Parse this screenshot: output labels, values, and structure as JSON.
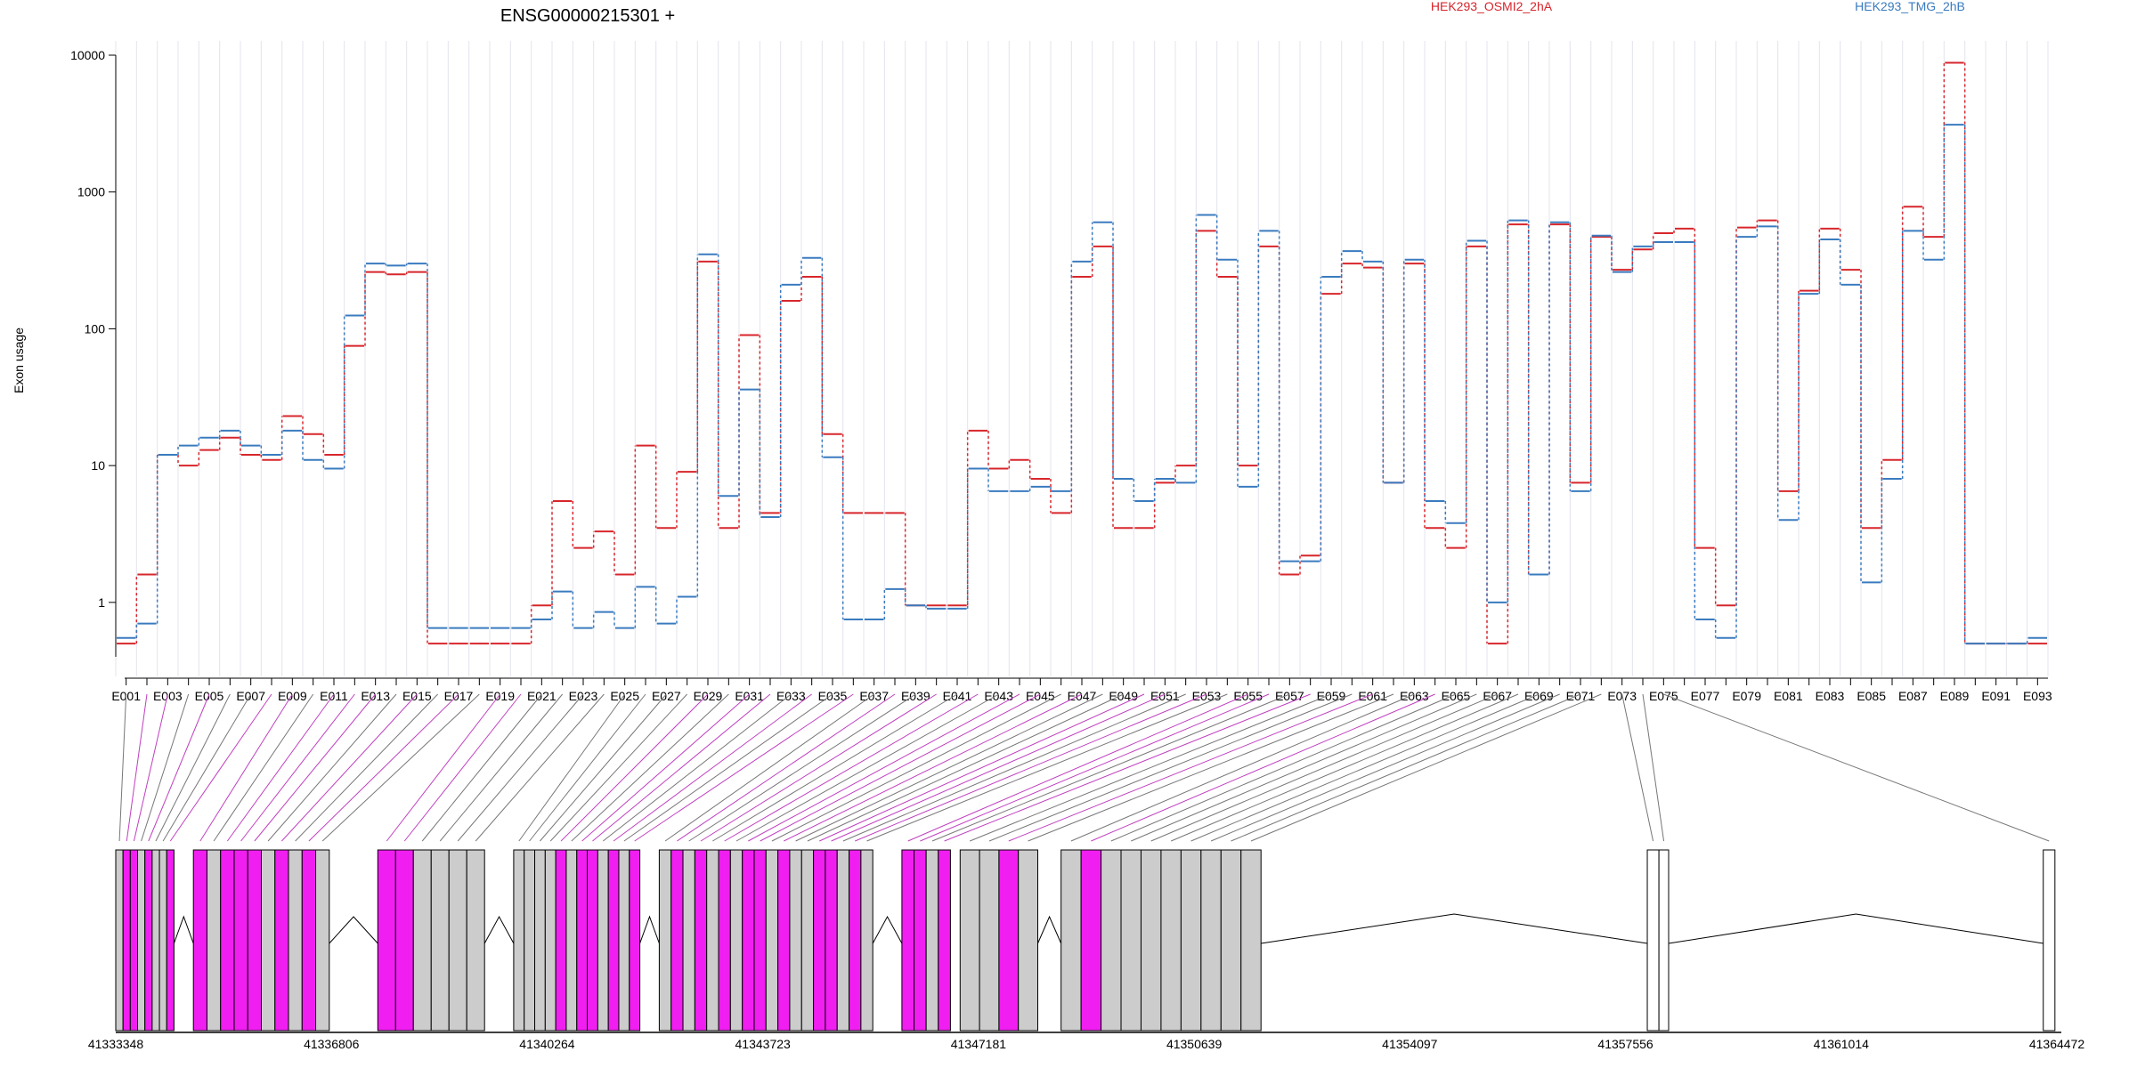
{
  "title": "ENSG00000215301 +",
  "ylabel": "Exon usage",
  "legend": [
    {
      "name": "HEK293_OSMI2_2hA",
      "color": "#d7262c"
    },
    {
      "name": "HEK293_TMG_2hB",
      "color": "#3a7bbf"
    }
  ],
  "colors": {
    "exon_highlight": "#f01ef0",
    "exon_plain": "#cccccc",
    "connector_highlight": "#c040c0",
    "connector_plain": "#777777"
  },
  "chart_data": {
    "type": "line",
    "scale": "log",
    "ylim": [
      0.4,
      10000
    ],
    "yticks": [
      1,
      10,
      100,
      1000,
      10000
    ],
    "ytick_labels": [
      "1",
      "10",
      "100",
      "1000",
      "10000"
    ],
    "categories": [
      "E001",
      "E002",
      "E003",
      "E004",
      "E005",
      "E006",
      "E007",
      "E008",
      "E009",
      "E010",
      "E011",
      "E012",
      "E013",
      "E014",
      "E015",
      "E016",
      "E017",
      "E018",
      "E019",
      "E020",
      "E021",
      "E022",
      "E023",
      "E024",
      "E025",
      "E026",
      "E027",
      "E028",
      "E029",
      "E030",
      "E031",
      "E032",
      "E033",
      "E034",
      "E035",
      "E036",
      "E037",
      "E038",
      "E039",
      "E040",
      "E041",
      "E042",
      "E043",
      "E044",
      "E045",
      "E046",
      "E047",
      "E048",
      "E049",
      "E050",
      "E051",
      "E052",
      "E053",
      "E054",
      "E055",
      "E056",
      "E057",
      "E058",
      "E059",
      "E060",
      "E061",
      "E062",
      "E063",
      "E064",
      "E065",
      "E066",
      "E067",
      "E068",
      "E069",
      "E070",
      "E071",
      "E072",
      "E073",
      "E074",
      "E075",
      "E076",
      "E077",
      "E078",
      "E079",
      "E080",
      "E081",
      "E082",
      "E083",
      "E084",
      "E085",
      "E086",
      "E087",
      "E088",
      "E089",
      "E090",
      "E091",
      "E092",
      "E093"
    ],
    "xtick_labels": [
      "E001",
      "E003",
      "E005",
      "E007",
      "E009",
      "E011",
      "E013",
      "E015",
      "E017",
      "E019",
      "E021",
      "E023",
      "E025",
      "E027",
      "E029",
      "E031",
      "E033",
      "E035",
      "E037",
      "E039",
      "E041",
      "E043",
      "E045",
      "E047",
      "E049",
      "E051",
      "E053",
      "E055",
      "E057",
      "E059",
      "E061",
      "E063",
      "E065",
      "E067",
      "E069",
      "E071",
      "E073",
      "E075",
      "E077",
      "E079",
      "E081",
      "E083",
      "E085",
      "E087",
      "E089",
      "E091",
      "E093"
    ],
    "series": [
      {
        "name": "HEK293_OSMI2_2hA",
        "values": [
          0.5,
          1.6,
          12,
          10,
          13,
          16,
          12,
          11,
          23,
          17,
          12,
          75,
          260,
          250,
          260,
          0.5,
          0.5,
          0.5,
          0.5,
          0.5,
          0.95,
          5.5,
          2.5,
          3.3,
          1.6,
          14,
          3.5,
          9,
          310,
          3.5,
          90,
          4.5,
          160,
          240,
          17,
          4.5,
          4.5,
          4.5,
          0.95,
          0.95,
          0.95,
          18,
          9.5,
          11,
          8,
          4.5,
          240,
          400,
          3.5,
          3.5,
          7.5,
          10,
          520,
          240,
          10,
          400,
          1.6,
          2.2,
          180,
          300,
          280,
          7.5,
          300,
          3.5,
          2.5,
          400,
          0.5,
          580,
          1.6,
          580,
          7.5,
          470,
          270,
          380,
          500,
          540,
          2.5,
          0.95,
          550,
          620,
          6.5,
          190,
          540,
          270,
          3.5,
          11,
          780,
          470,
          8800,
          0.5,
          0.5,
          0.5,
          0.5
        ]
      },
      {
        "name": "HEK293_TMG_2hB",
        "values": [
          0.55,
          0.7,
          12,
          14,
          16,
          18,
          14,
          12,
          18,
          11,
          9.5,
          125,
          300,
          290,
          300,
          0.65,
          0.65,
          0.65,
          0.65,
          0.65,
          0.75,
          1.2,
          0.65,
          0.85,
          0.65,
          1.3,
          0.7,
          1.1,
          350,
          6,
          36,
          4.2,
          210,
          330,
          11.5,
          0.75,
          0.75,
          1.25,
          0.95,
          0.9,
          0.9,
          9.5,
          6.5,
          6.5,
          7,
          6.5,
          310,
          600,
          8,
          5.5,
          8,
          7.5,
          680,
          320,
          7,
          520,
          2,
          2,
          240,
          370,
          310,
          7.5,
          320,
          5.5,
          3.8,
          440,
          1,
          620,
          1.6,
          600,
          6.5,
          480,
          260,
          400,
          430,
          430,
          0.75,
          0.55,
          470,
          560,
          4,
          180,
          450,
          210,
          1.4,
          8,
          520,
          320,
          3100,
          0.5,
          0.5,
          0.5,
          0.55
        ]
      }
    ]
  },
  "gene_model": {
    "coordinates": [
      "41333348",
      "41336806",
      "41340264",
      "41343723",
      "41347181",
      "41350639",
      "41354097",
      "41357556",
      "41361014",
      "41364472"
    ],
    "exon_highlight": [
      false,
      true,
      true,
      false,
      true,
      false,
      false,
      true,
      true,
      false,
      true,
      true,
      true,
      false,
      true,
      false,
      true,
      false,
      true,
      true,
      false,
      false,
      false,
      false,
      false,
      false,
      false,
      false,
      true,
      false,
      true,
      true,
      false,
      true,
      false,
      true,
      false,
      true,
      false,
      true,
      false,
      true,
      false,
      true,
      true,
      false,
      true,
      false,
      false,
      true,
      true,
      false,
      true,
      false,
      true,
      true,
      false,
      true,
      false,
      false,
      true,
      false,
      false,
      true,
      false,
      false,
      false,
      false,
      false,
      false,
      false,
      false,
      false,
      false,
      false,
      false,
      false,
      false,
      false,
      false,
      false,
      false,
      false,
      false,
      false,
      false,
      false,
      false,
      false,
      false,
      false,
      false,
      false
    ]
  }
}
